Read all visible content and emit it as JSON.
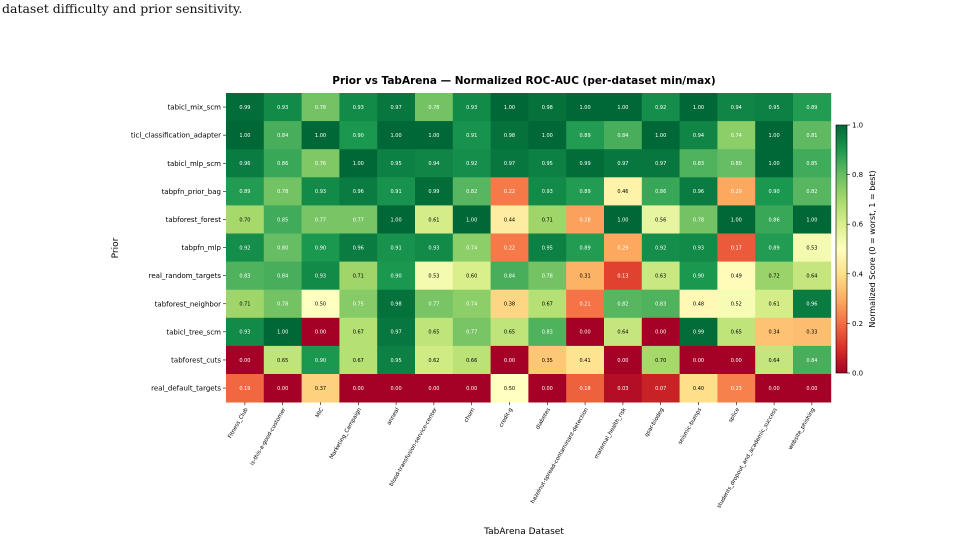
{
  "page": {
    "caption_fragment": "dataset difficulty and prior sensitivity."
  },
  "chart_data": {
    "type": "heatmap",
    "title": "Prior vs TabArena — Normalized ROC-AUC (per-dataset min/max)",
    "xlabel": "TabArena Dataset",
    "ylabel": "Prior",
    "colorbar_label": "Normalized Score (0 = worst, 1 = best)",
    "colorbar_ticks": [
      "0.0",
      "0.2",
      "0.4",
      "0.6",
      "0.8",
      "1.0"
    ],
    "colormap": "RdYlGn",
    "value_range": [
      0.0,
      1.0
    ],
    "columns": [
      "Fitness_Club",
      "is-this-a-good-customer",
      "MIC",
      "Marketing_Campaign",
      "anneal",
      "blood-transfusion-service-center",
      "churn",
      "credit-g",
      "diabetes",
      "hazelnut-spread-contaminant-detection",
      "maternal_health_risk",
      "qsar-biodeg",
      "seismic-bumps",
      "splice",
      "students_dropout_and_academic_success",
      "website_phishing"
    ],
    "rows": [
      "tabicl_mix_scm",
      "ticl_classification_adapter",
      "tabicl_mlp_scm",
      "tabpfn_prior_bag",
      "tabforest_forest",
      "tabpfn_mlp",
      "real_random_targets",
      "tabforest_neighbor",
      "tabicl_tree_scm",
      "tabforest_cuts",
      "real_default_targets"
    ],
    "values": [
      [
        0.99,
        0.93,
        0.78,
        0.93,
        0.97,
        0.78,
        0.93,
        1.0,
        0.98,
        1.0,
        1.0,
        0.92,
        1.0,
        0.94,
        0.95,
        0.89
      ],
      [
        1.0,
        0.84,
        1.0,
        0.9,
        1.0,
        1.0,
        0.91,
        0.98,
        1.0,
        0.89,
        0.84,
        1.0,
        0.94,
        0.74,
        1.0,
        0.81
      ],
      [
        0.96,
        0.86,
        0.76,
        1.0,
        0.95,
        0.94,
        0.92,
        0.97,
        0.95,
        0.99,
        0.97,
        0.97,
        0.83,
        0.8,
        1.0,
        0.85
      ],
      [
        0.89,
        0.78,
        0.93,
        0.96,
        0.91,
        0.99,
        0.82,
        0.22,
        0.93,
        0.89,
        0.46,
        0.86,
        0.96,
        0.29,
        0.9,
        0.82
      ],
      [
        0.7,
        0.85,
        0.77,
        0.77,
        1.0,
        0.61,
        1.0,
        0.44,
        0.71,
        0.28,
        1.0,
        0.56,
        0.78,
        1.0,
        0.86,
        1.0
      ],
      [
        0.92,
        0.8,
        0.9,
        0.96,
        0.91,
        0.93,
        0.74,
        0.22,
        0.95,
        0.89,
        0.29,
        0.92,
        0.93,
        0.17,
        0.89,
        0.53
      ],
      [
        0.83,
        0.84,
        0.93,
        0.71,
        0.9,
        0.53,
        0.6,
        0.84,
        0.78,
        0.31,
        0.13,
        0.63,
        0.9,
        0.49,
        0.72,
        0.64
      ],
      [
        0.71,
        0.78,
        0.5,
        0.75,
        0.98,
        0.77,
        0.74,
        0.38,
        0.67,
        0.21,
        0.82,
        0.83,
        0.48,
        0.52,
        0.61,
        0.96
      ],
      [
        0.93,
        1.0,
        0.0,
        0.67,
        0.97,
        0.65,
        0.77,
        0.65,
        0.83,
        0.0,
        0.64,
        0.0,
        0.99,
        0.65,
        0.34,
        0.33
      ],
      [
        0.0,
        0.65,
        0.9,
        0.67,
        0.95,
        0.62,
        0.66,
        0.0,
        0.35,
        0.41,
        0.0,
        0.7,
        0.0,
        0.0,
        0.64,
        0.84
      ],
      [
        0.19,
        0.0,
        0.37,
        0.0,
        0.0,
        0.0,
        0.0,
        0.5,
        0.0,
        0.18,
        0.03,
        0.07,
        0.4,
        0.23,
        0.0,
        0.0
      ]
    ]
  }
}
